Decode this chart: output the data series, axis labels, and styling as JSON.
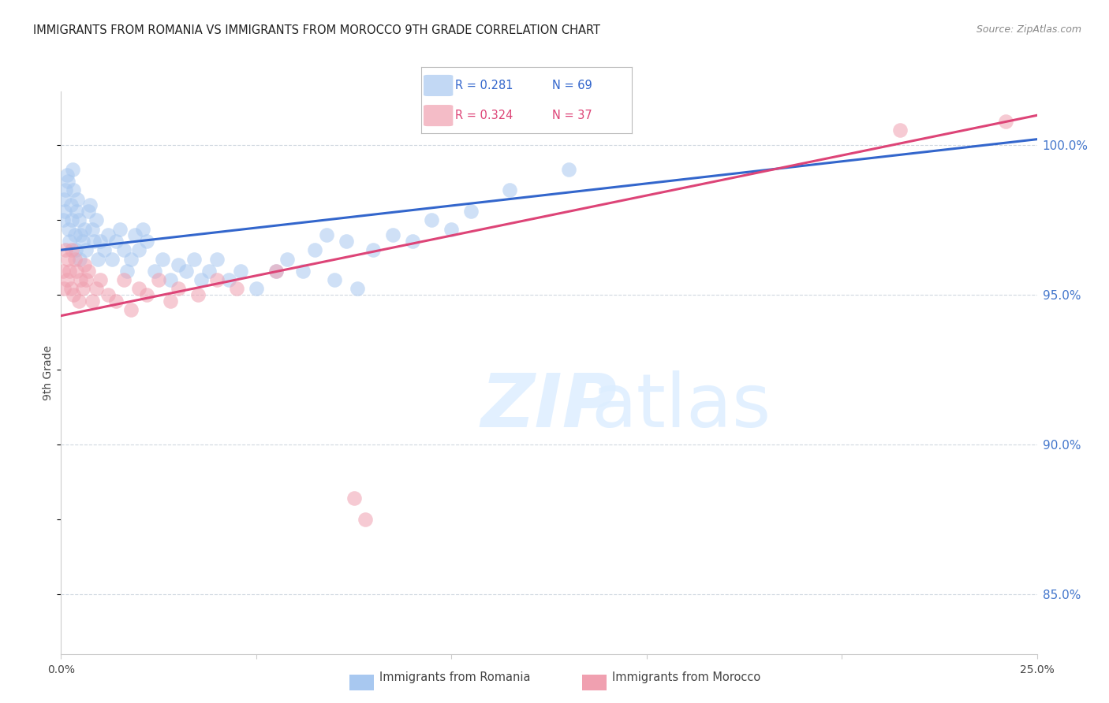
{
  "title": "IMMIGRANTS FROM ROMANIA VS IMMIGRANTS FROM MOROCCO 9TH GRADE CORRELATION CHART",
  "source": "Source: ZipAtlas.com",
  "ylabel": "9th Grade",
  "ylabel_ticks": [
    85.0,
    90.0,
    95.0,
    100.0
  ],
  "xmin": 0.0,
  "xmax": 25.0,
  "ymin": 83.0,
  "ymax": 101.8,
  "r_romania": 0.281,
  "n_romania": 69,
  "r_morocco": 0.324,
  "n_morocco": 37,
  "color_romania": "#a8c8f0",
  "color_morocco": "#f0a0b0",
  "trendline_color_romania": "#3366cc",
  "trendline_color_morocco": "#dd4477",
  "legend_label_romania": "Immigrants from Romania",
  "legend_label_morocco": "Immigrants from Morocco",
  "trendline_romania_y0": 96.5,
  "trendline_romania_y1": 100.2,
  "trendline_morocco_y0": 94.3,
  "trendline_morocco_y1": 101.0,
  "romania_x": [
    0.05,
    0.08,
    0.1,
    0.12,
    0.15,
    0.18,
    0.2,
    0.22,
    0.25,
    0.28,
    0.3,
    0.32,
    0.35,
    0.38,
    0.4,
    0.42,
    0.45,
    0.48,
    0.5,
    0.55,
    0.6,
    0.65,
    0.7,
    0.75,
    0.8,
    0.85,
    0.9,
    0.95,
    1.0,
    1.1,
    1.2,
    1.3,
    1.4,
    1.5,
    1.6,
    1.7,
    1.8,
    1.9,
    2.0,
    2.1,
    2.2,
    2.4,
    2.6,
    2.8,
    3.0,
    3.2,
    3.4,
    3.6,
    3.8,
    4.0,
    4.3,
    4.6,
    5.0,
    5.5,
    5.8,
    6.2,
    6.5,
    6.8,
    7.0,
    7.3,
    7.6,
    8.0,
    8.5,
    9.0,
    9.5,
    10.0,
    10.5,
    11.5,
    13.0
  ],
  "romania_y": [
    97.5,
    98.2,
    97.8,
    98.5,
    99.0,
    98.8,
    97.2,
    96.8,
    98.0,
    97.5,
    99.2,
    98.5,
    97.0,
    96.5,
    97.8,
    98.2,
    97.5,
    96.2,
    97.0,
    96.8,
    97.2,
    96.5,
    97.8,
    98.0,
    97.2,
    96.8,
    97.5,
    96.2,
    96.8,
    96.5,
    97.0,
    96.2,
    96.8,
    97.2,
    96.5,
    95.8,
    96.2,
    97.0,
    96.5,
    97.2,
    96.8,
    95.8,
    96.2,
    95.5,
    96.0,
    95.8,
    96.2,
    95.5,
    95.8,
    96.2,
    95.5,
    95.8,
    95.2,
    95.8,
    96.2,
    95.8,
    96.5,
    97.0,
    95.5,
    96.8,
    95.2,
    96.5,
    97.0,
    96.8,
    97.5,
    97.2,
    97.8,
    98.5,
    99.2
  ],
  "morocco_x": [
    0.05,
    0.08,
    0.12,
    0.15,
    0.18,
    0.22,
    0.25,
    0.28,
    0.32,
    0.35,
    0.4,
    0.45,
    0.5,
    0.55,
    0.6,
    0.65,
    0.7,
    0.8,
    0.9,
    1.0,
    1.2,
    1.4,
    1.6,
    1.8,
    2.0,
    2.2,
    2.5,
    2.8,
    3.0,
    3.5,
    4.0,
    4.5,
    5.5,
    7.5,
    7.8,
    21.5,
    24.2
  ],
  "morocco_y": [
    95.8,
    95.2,
    96.5,
    95.5,
    96.2,
    95.8,
    95.2,
    96.5,
    95.0,
    96.2,
    95.8,
    94.8,
    95.5,
    95.2,
    96.0,
    95.5,
    95.8,
    94.8,
    95.2,
    95.5,
    95.0,
    94.8,
    95.5,
    94.5,
    95.2,
    95.0,
    95.5,
    94.8,
    95.2,
    95.0,
    95.5,
    95.2,
    95.8,
    88.2,
    87.5,
    100.5,
    100.8
  ]
}
